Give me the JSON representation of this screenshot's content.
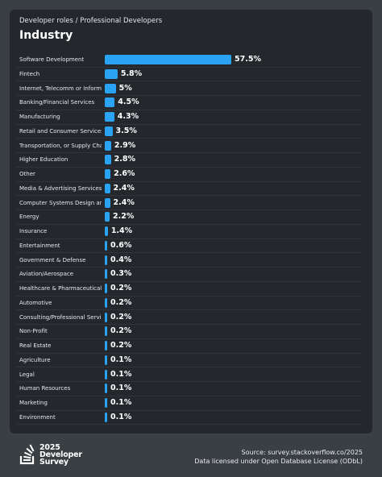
{
  "header": {
    "breadcrumb": "Developer roles / Professional Developers",
    "title": "Industry"
  },
  "footer": {
    "logo_line1": "2025",
    "logo_line2": "Developer",
    "logo_line3": "Survey",
    "source": "Source: survey.stackoverflow.co/2025",
    "license": "Data licensed under Open Database License (ODbL)"
  },
  "colors": {
    "bar": "#2aa3f5",
    "card": "#24282d",
    "background": "#3a3f44"
  },
  "chart_data": {
    "type": "bar",
    "orientation": "horizontal",
    "title": "Industry",
    "value_unit": "%",
    "xlim": [
      0,
      60
    ],
    "categories": [
      "Software Development",
      "Fintech",
      "Internet, Telecomm or Information Services",
      "Banking/Financial Services",
      "Manufacturing",
      "Retail and Consumer Services",
      "Transportation, or Supply Chain",
      "Higher Education",
      "Other",
      "Media & Advertising Services",
      "Computer Systems Design and Services",
      "Energy",
      "Insurance",
      "Entertainment",
      "Government & Defense",
      "Aviation/Aerospace",
      "Healthcare & Pharmaceuticals",
      "Automotive",
      "Consulting/Professional Services",
      "Non-Profit",
      "Real Estate",
      "Agriculture",
      "Legal",
      "Human Resources",
      "Marketing",
      "Environment"
    ],
    "values": [
      57.5,
      5.8,
      5,
      4.5,
      4.3,
      3.5,
      2.9,
      2.8,
      2.6,
      2.4,
      2.4,
      2.2,
      1.4,
      0.6,
      0.4,
      0.3,
      0.2,
      0.2,
      0.2,
      0.2,
      0.2,
      0.1,
      0.1,
      0.1,
      0.1,
      0.1
    ],
    "labels": [
      "57.5%",
      "5.8%",
      "5%",
      "4.5%",
      "4.3%",
      "3.5%",
      "2.9%",
      "2.8%",
      "2.6%",
      "2.4%",
      "2.4%",
      "2.2%",
      "1.4%",
      "0.6%",
      "0.4%",
      "0.3%",
      "0.2%",
      "0.2%",
      "0.2%",
      "0.2%",
      "0.2%",
      "0.1%",
      "0.1%",
      "0.1%",
      "0.1%",
      "0.1%"
    ]
  }
}
